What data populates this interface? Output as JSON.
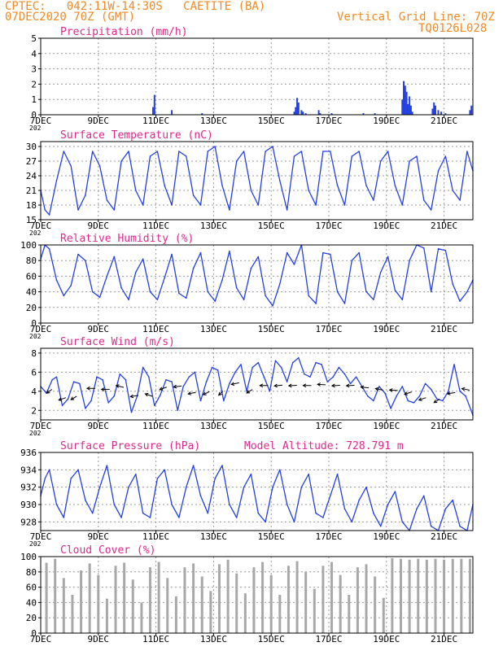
{
  "header": {
    "line1": "CPTEC:   042:11W-14:30S   CAETITE (BA)",
    "line2": "07DEC2020 70Z (GMT)",
    "grid_note": "Vertical Grid Line: 70Z",
    "code": "TQ0126L028"
  },
  "colors": {
    "header": "#f08a24",
    "title": "#e0288a",
    "line": "#2440e0",
    "bar": "#2440e0",
    "cloud": "#a8a8a8",
    "grid": "#9a9a9a",
    "frame": "#000000",
    "wind_arrow": "#000000"
  },
  "x_axis": {
    "ticks": [
      "7DEC",
      "9DEC",
      "11DEC",
      "13DEC",
      "15DEC",
      "17DEC",
      "19DEC",
      "21DEC"
    ],
    "tick_days": [
      0,
      2,
      4,
      6,
      8,
      10,
      12,
      14
    ],
    "sub_label": "202",
    "range_days": [
      0,
      15
    ]
  },
  "chart_data": [
    {
      "id": "precip",
      "type": "bar",
      "title": "Precipitation (mm/h)",
      "ylim": [
        0,
        5
      ],
      "yticks": [
        0,
        1,
        2,
        3,
        4,
        5
      ],
      "grid": true,
      "x_days": [
        3.9,
        3.95,
        4.55,
        5.6,
        8.8,
        8.85,
        8.9,
        8.95,
        9.05,
        9.1,
        9.2,
        9.65,
        9.7,
        10.1,
        11.2,
        11.6,
        12.55,
        12.6,
        12.65,
        12.7,
        12.75,
        12.8,
        12.85,
        12.9,
        13.6,
        13.65,
        13.7,
        13.8,
        13.9,
        14.05,
        14.9,
        14.95
      ],
      "values": [
        0.5,
        1.3,
        0.3,
        0.1,
        0.2,
        0.5,
        1.1,
        0.8,
        0.3,
        0.2,
        0.1,
        0.3,
        0.1,
        0.1,
        0.1,
        0.1,
        1.0,
        2.2,
        1.9,
        1.5,
        0.7,
        1.2,
        0.6,
        0.2,
        0.4,
        0.8,
        0.6,
        0.3,
        0.2,
        0.1,
        0.3,
        0.6
      ]
    },
    {
      "id": "temp",
      "type": "line",
      "title": "Surface Temperature (nC)",
      "ylim": [
        15,
        31
      ],
      "yticks": [
        15,
        18,
        21,
        24,
        27,
        30
      ],
      "grid": true,
      "x_days": [
        0,
        0.15,
        0.3,
        0.55,
        0.8,
        1.05,
        1.3,
        1.55,
        1.8,
        2.05,
        2.3,
        2.55,
        2.8,
        3.05,
        3.3,
        3.55,
        3.8,
        4.05,
        4.3,
        4.55,
        4.8,
        5.05,
        5.3,
        5.55,
        5.8,
        6.05,
        6.3,
        6.55,
        6.8,
        7.05,
        7.3,
        7.55,
        7.8,
        8.05,
        8.3,
        8.55,
        8.8,
        9.05,
        9.3,
        9.55,
        9.8,
        10.05,
        10.3,
        10.55,
        10.8,
        11.05,
        11.3,
        11.55,
        11.8,
        12.05,
        12.3,
        12.55,
        12.8,
        13.05,
        13.3,
        13.55,
        13.8,
        14.05,
        14.3,
        14.55,
        14.8,
        15.0
      ],
      "values": [
        21,
        17,
        16,
        23,
        29,
        26,
        17,
        20,
        29,
        26,
        19,
        17,
        27,
        29,
        21,
        18,
        28,
        29,
        22,
        18,
        29,
        28,
        20,
        18,
        29,
        30,
        22,
        17,
        27,
        29,
        21,
        18,
        29,
        30,
        23,
        17,
        28,
        29,
        21,
        18,
        29,
        29,
        22,
        18,
        28,
        29,
        22,
        19,
        27,
        29,
        22,
        18,
        27,
        28,
        19,
        17,
        25,
        28,
        21,
        19,
        29,
        25
      ]
    },
    {
      "id": "rh",
      "type": "line",
      "title": "Relative Humidity (%)",
      "ylim": [
        0,
        100
      ],
      "yticks": [
        0,
        20,
        40,
        60,
        80,
        100
      ],
      "grid": true,
      "x_days": [
        0,
        0.15,
        0.3,
        0.55,
        0.8,
        1.05,
        1.3,
        1.55,
        1.8,
        2.05,
        2.3,
        2.55,
        2.8,
        3.05,
        3.3,
        3.55,
        3.8,
        4.05,
        4.3,
        4.55,
        4.8,
        5.05,
        5.3,
        5.55,
        5.8,
        6.05,
        6.3,
        6.55,
        6.8,
        7.05,
        7.3,
        7.55,
        7.8,
        8.05,
        8.3,
        8.55,
        8.8,
        9.05,
        9.3,
        9.55,
        9.8,
        10.05,
        10.3,
        10.55,
        10.8,
        11.05,
        11.3,
        11.55,
        11.8,
        12.05,
        12.3,
        12.55,
        12.8,
        13.05,
        13.3,
        13.55,
        13.8,
        14.05,
        14.3,
        14.55,
        14.8,
        15.0
      ],
      "values": [
        82,
        100,
        95,
        55,
        35,
        48,
        88,
        80,
        40,
        33,
        60,
        85,
        45,
        30,
        65,
        82,
        40,
        30,
        58,
        88,
        38,
        32,
        70,
        90,
        40,
        28,
        55,
        92,
        45,
        30,
        70,
        85,
        35,
        22,
        50,
        90,
        75,
        100,
        35,
        25,
        90,
        88,
        40,
        25,
        80,
        90,
        40,
        30,
        65,
        85,
        42,
        30,
        80,
        100,
        96,
        40,
        95,
        93,
        50,
        28,
        40,
        55
      ]
    },
    {
      "id": "wind",
      "type": "line",
      "title": "Surface Wind (m/s)",
      "ylim": [
        1,
        8.5
      ],
      "yticks": [
        2,
        4,
        6,
        8
      ],
      "grid": true,
      "x_days": [
        0,
        0.2,
        0.4,
        0.55,
        0.75,
        0.95,
        1.15,
        1.35,
        1.55,
        1.75,
        1.95,
        2.15,
        2.35,
        2.55,
        2.75,
        2.95,
        3.15,
        3.35,
        3.55,
        3.75,
        3.95,
        4.15,
        4.35,
        4.55,
        4.75,
        4.95,
        5.15,
        5.35,
        5.55,
        5.75,
        5.95,
        6.15,
        6.35,
        6.55,
        6.75,
        6.95,
        7.15,
        7.35,
        7.55,
        7.75,
        7.95,
        8.15,
        8.35,
        8.55,
        8.75,
        8.95,
        9.15,
        9.35,
        9.55,
        9.75,
        9.95,
        10.15,
        10.35,
        10.55,
        10.75,
        10.95,
        11.15,
        11.35,
        11.55,
        11.75,
        11.95,
        12.15,
        12.35,
        12.55,
        12.75,
        12.95,
        13.15,
        13.35,
        13.55,
        13.75,
        13.95,
        14.15,
        14.35,
        14.55,
        14.75,
        15.0
      ],
      "values": [
        4.5,
        3.8,
        5.2,
        5.5,
        2.5,
        3.2,
        5.0,
        4.8,
        2.2,
        3.0,
        5.5,
        5.2,
        2.8,
        3.5,
        5.8,
        5.2,
        1.8,
        3.5,
        6.5,
        5.5,
        2.5,
        3.6,
        5.2,
        5.0,
        2.0,
        4.5,
        5.5,
        6.0,
        3.0,
        5.0,
        6.5,
        6.2,
        3.0,
        4.8,
        6.0,
        6.8,
        4.0,
        6.5,
        7.0,
        5.5,
        4.0,
        7.2,
        6.5,
        5.0,
        7.0,
        7.5,
        5.8,
        5.5,
        7.0,
        6.8,
        5.0,
        5.5,
        6.5,
        5.8,
        4.8,
        5.5,
        4.5,
        3.5,
        3.0,
        4.5,
        3.8,
        2.2,
        3.5,
        4.5,
        3.0,
        2.8,
        3.5,
        4.8,
        4.2,
        3.2,
        3.0,
        4.0,
        6.8,
        4.0,
        3.5,
        1.5
      ],
      "arrows": {
        "x_days": [
          0.3,
          0.75,
          1.15,
          1.75,
          2.25,
          2.75,
          3.25,
          3.75,
          4.25,
          4.75,
          5.25,
          5.75,
          6.25,
          6.75,
          7.25,
          7.75,
          8.25,
          8.75,
          9.25,
          9.75,
          10.25,
          10.75,
          11.25,
          11.75,
          12.25,
          12.75,
          13.25,
          13.75,
          14.25,
          14.75
        ],
        "speed": [
          4.0,
          3.2,
          3.3,
          4.3,
          4.2,
          4.5,
          3.5,
          3.6,
          4.3,
          4.5,
          3.8,
          3.8,
          3.8,
          4.8,
          4.0,
          4.6,
          4.6,
          4.6,
          4.6,
          4.7,
          4.6,
          4.6,
          4.4,
          4.2,
          4.1,
          3.8,
          3.2,
          3.0,
          3.8,
          4.2
        ],
        "dir_deg": [
          40,
          60,
          45,
          90,
          90,
          110,
          75,
          120,
          60,
          80,
          70,
          50,
          30,
          70,
          45,
          90,
          80,
          85,
          90,
          95,
          85,
          85,
          100,
          110,
          95,
          60,
          60,
          45,
          75,
          110
        ]
      }
    },
    {
      "id": "pressure",
      "type": "line",
      "title": "Surface Pressure (hPa)",
      "annotation": "Model Altitude: 728.791  m",
      "ylim": [
        927,
        936
      ],
      "yticks": [
        928,
        930,
        932,
        934,
        936
      ],
      "grid": true,
      "x_days": [
        0,
        0.15,
        0.3,
        0.55,
        0.8,
        1.05,
        1.3,
        1.55,
        1.8,
        2.05,
        2.3,
        2.55,
        2.8,
        3.05,
        3.3,
        3.55,
        3.8,
        4.05,
        4.3,
        4.55,
        4.8,
        5.05,
        5.3,
        5.55,
        5.8,
        6.05,
        6.3,
        6.55,
        6.8,
        7.05,
        7.3,
        7.55,
        7.8,
        8.05,
        8.3,
        8.55,
        8.8,
        9.05,
        9.3,
        9.55,
        9.8,
        10.05,
        10.3,
        10.55,
        10.8,
        11.05,
        11.3,
        11.55,
        11.8,
        12.05,
        12.3,
        12.55,
        12.8,
        13.05,
        13.3,
        13.55,
        13.8,
        14.05,
        14.3,
        14.55,
        14.8,
        15.0
      ],
      "values": [
        931,
        933,
        934,
        930,
        928.5,
        933,
        934,
        930.5,
        929,
        932,
        934.5,
        930,
        928.5,
        932,
        933.5,
        929,
        928.5,
        933,
        934,
        930,
        928.5,
        932,
        934.5,
        931,
        929,
        933,
        934.5,
        930,
        928.5,
        932,
        933.5,
        929,
        928,
        932,
        934,
        930,
        928,
        932,
        933.5,
        929,
        928.5,
        931,
        933.5,
        929.5,
        928,
        930.5,
        932,
        929,
        927.5,
        930,
        931.5,
        928,
        927,
        929.5,
        931,
        927.5,
        927,
        929.5,
        930.5,
        927.5,
        927,
        930
      ]
    },
    {
      "id": "cloud",
      "type": "bar",
      "title": "Cloud Cover (%)",
      "ylim": [
        0,
        100
      ],
      "yticks": [
        0,
        20,
        40,
        60,
        80,
        100
      ],
      "grid": true,
      "x_days": [
        0.2,
        0.5,
        0.8,
        1.1,
        1.4,
        1.7,
        2.0,
        2.3,
        2.6,
        2.9,
        3.2,
        3.5,
        3.8,
        4.1,
        4.4,
        4.7,
        5.0,
        5.3,
        5.6,
        5.9,
        6.2,
        6.5,
        6.8,
        7.1,
        7.4,
        7.7,
        8.0,
        8.3,
        8.6,
        8.9,
        9.2,
        9.5,
        9.8,
        10.1,
        10.4,
        10.7,
        11.0,
        11.3,
        11.6,
        11.9,
        12.2,
        12.5,
        12.8,
        13.1,
        13.4,
        13.7,
        14.0,
        14.3,
        14.6,
        14.9
      ],
      "values": [
        92,
        97,
        72,
        50,
        82,
        91,
        76,
        45,
        88,
        92,
        70,
        40,
        86,
        93,
        72,
        48,
        86,
        91,
        74,
        55,
        90,
        96,
        78,
        52,
        86,
        93,
        76,
        50,
        88,
        94,
        80,
        58,
        88,
        93,
        76,
        50,
        86,
        90,
        74,
        46,
        98,
        97,
        96,
        97,
        96,
        97,
        96,
        97,
        97,
        97
      ]
    }
  ]
}
